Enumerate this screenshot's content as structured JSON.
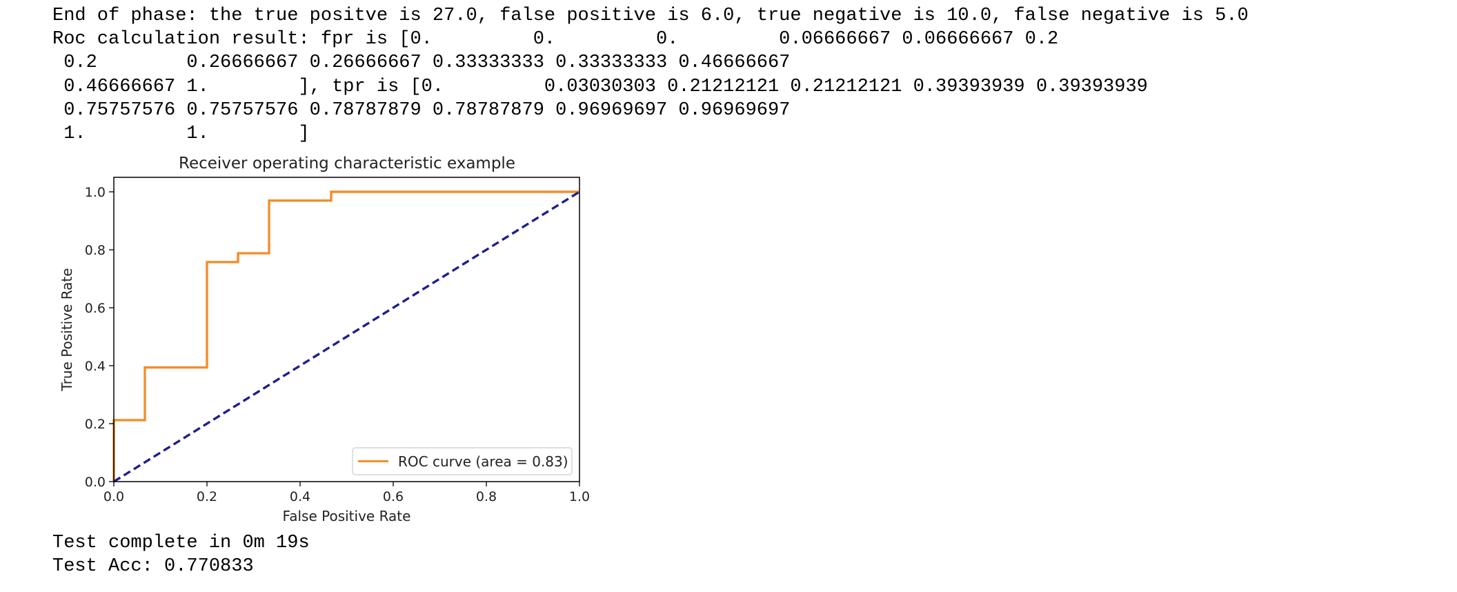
{
  "output": {
    "top_lines": [
      "End of phase: the true positve is 27.0, false positive is 6.0, true negative is 10.0, false negative is 5.0",
      "Roc calculation result: fpr is [0.         0.         0.         0.06666667 0.06666667 0.2",
      " 0.2        0.26666667 0.26666667 0.33333333 0.33333333 0.46666667",
      " 0.46666667 1.        ], tpr is [0.         0.03030303 0.21212121 0.21212121 0.39393939 0.39393939",
      " 0.75757576 0.75757576 0.78787879 0.78787879 0.96969697 0.96969697",
      " 1.         1.        ]"
    ],
    "bottom_lines": [
      "Test complete in 0m 19s",
      "Test Acc: 0.770833"
    ]
  },
  "chart_data": {
    "type": "line",
    "title": "Receiver operating characteristic example",
    "xlabel": "False Positive Rate",
    "ylabel": "True Positive Rate",
    "xlim": [
      0.0,
      1.0
    ],
    "ylim": [
      0.0,
      1.05
    ],
    "x_ticks": [
      0.0,
      0.2,
      0.4,
      0.6,
      0.8,
      1.0
    ],
    "y_ticks": [
      0.0,
      0.2,
      0.4,
      0.6,
      0.8,
      1.0
    ],
    "x_tick_labels": [
      "0.0",
      "0.2",
      "0.4",
      "0.6",
      "0.8",
      "1.0"
    ],
    "y_tick_labels": [
      "0.0",
      "0.2",
      "0.4",
      "0.6",
      "0.8",
      "1.0"
    ],
    "grid": false,
    "legend_position": "lower-right",
    "series": [
      {
        "name": "ROC curve (area = 0.83)",
        "color": "#f28e2b",
        "style": "solid",
        "x": [
          0.0,
          0.0,
          0.0,
          0.06666667,
          0.06666667,
          0.2,
          0.2,
          0.26666667,
          0.26666667,
          0.33333333,
          0.33333333,
          0.46666667,
          0.46666667,
          1.0
        ],
        "y": [
          0.0,
          0.03030303,
          0.21212121,
          0.21212121,
          0.39393939,
          0.39393939,
          0.75757576,
          0.75757576,
          0.78787879,
          0.78787879,
          0.96969697,
          0.96969697,
          1.0,
          1.0
        ]
      },
      {
        "color": "#1f1f8f",
        "style": "dashed",
        "x": [
          0.0,
          1.0
        ],
        "y": [
          0.0,
          1.0
        ]
      }
    ]
  }
}
